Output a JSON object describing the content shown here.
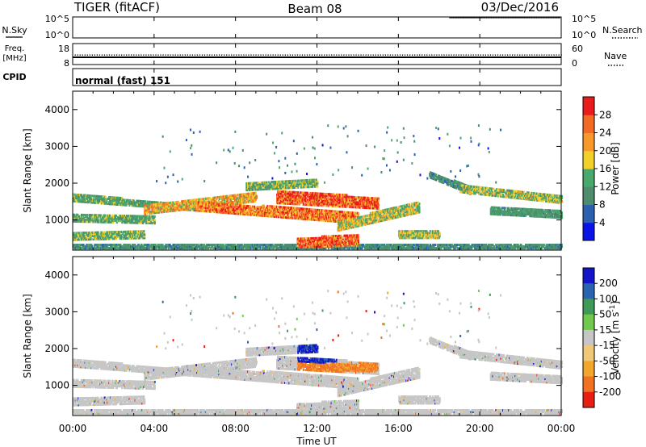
{
  "header": {
    "station": "TIGER (fitACF)",
    "beam": "Beam 08",
    "date": "03/Dec/2016"
  },
  "noise_panel": {
    "left_label": "N.Sky",
    "right_label": "N.Search",
    "top_tick": "10^5",
    "bottom_tick": "10^0"
  },
  "freq_panel": {
    "left_label_1": "Freq.",
    "left_label_2": "[MHz]",
    "right_label": "Nave",
    "left_top_tick": "18",
    "left_bottom_tick": "8",
    "right_top_tick": "60",
    "right_bottom_tick": "0"
  },
  "cpid_panel": {
    "label": "CPID",
    "mode_text": "normal (fast) 151"
  },
  "x_axis": {
    "title": "Time UT",
    "ticks": [
      "00:00",
      "04:00",
      "08:00",
      "12:00",
      "16:00",
      "20:00",
      "00:00"
    ]
  },
  "chart_data": [
    {
      "type": "heatmap",
      "name": "power",
      "ylabel": "Slant Range [km]",
      "ylim": [
        180,
        4500
      ],
      "y_ticks": [
        "1000",
        "2000",
        "3000",
        "4000"
      ],
      "colorbar": {
        "label": "Power [dB]",
        "ticks": [
          "4",
          "8",
          "12",
          "16",
          "20",
          "24",
          "28"
        ],
        "colors": [
          "#0a14e6",
          "#2c61b0",
          "#4e8c6e",
          "#49a86c",
          "#f3cf2c",
          "#f6982c",
          "#f26a26",
          "#ea1b1d"
        ]
      }
    },
    {
      "type": "heatmap",
      "name": "velocity",
      "ylabel": "Slant Range [km]",
      "ylim": [
        180,
        4500
      ],
      "y_ticks": [
        "1000",
        "2000",
        "3000",
        "4000"
      ],
      "colorbar": {
        "label": "Velocity [m s^-1]",
        "ticks": [
          "200",
          "100",
          "50",
          "15",
          "-15",
          "-50",
          "-100",
          "-200"
        ],
        "colors": [
          "#1414c8",
          "#2a64b0",
          "#3f9a57",
          "#72c84c",
          "#c6c6c6",
          "#f0c878",
          "#f2a62c",
          "#f27224",
          "#e82014"
        ]
      }
    }
  ]
}
